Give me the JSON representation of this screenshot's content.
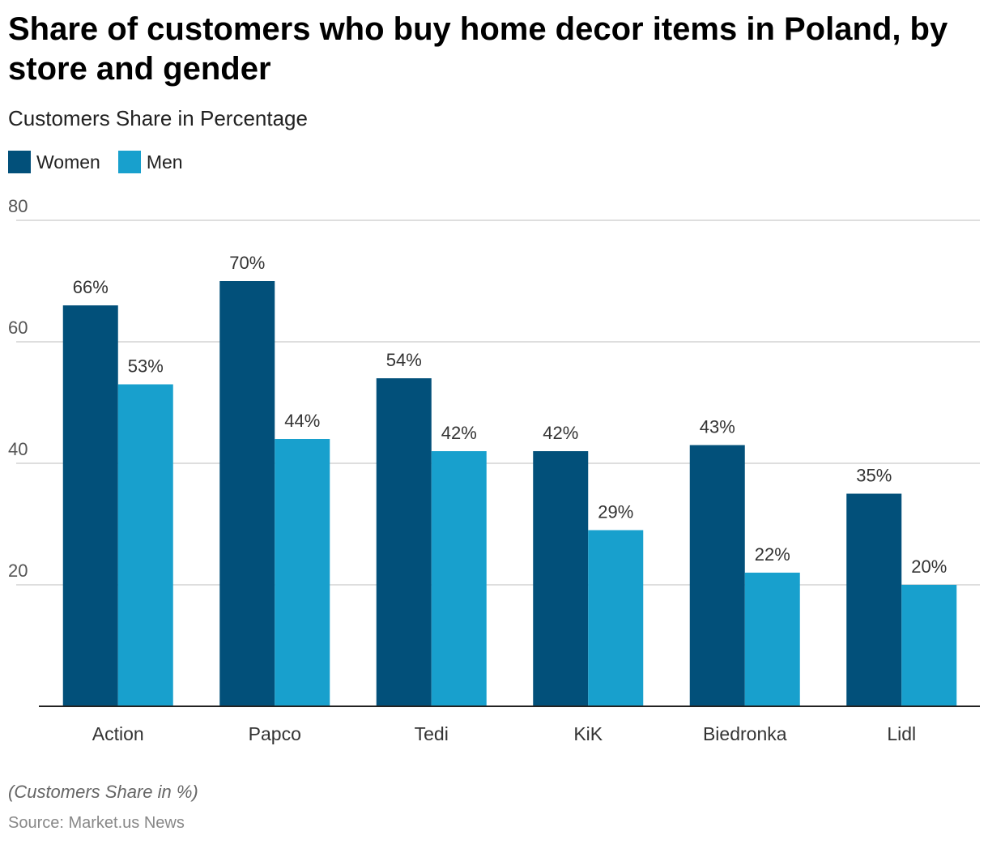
{
  "header": {
    "title": "Share of customers who buy home decor items in Poland, by store and gender",
    "subtitle": "Customers Share in Percentage"
  },
  "legend": {
    "items": [
      {
        "label": "Women",
        "color": "#02507a"
      },
      {
        "label": "Men",
        "color": "#18a0cd"
      }
    ]
  },
  "footer": {
    "note": "(Customers Share in %)",
    "source": "Source: Market.us News"
  },
  "chart_data": {
    "type": "bar",
    "title": "Share of customers who buy home decor items in Poland, by store and gender",
    "subtitle": "Customers Share in Percentage",
    "categories": [
      "Action",
      "Papco",
      "Tedi",
      "KiK",
      "Biedronka",
      "Lidl"
    ],
    "series": [
      {
        "name": "Women",
        "values": [
          66,
          70,
          54,
          42,
          43,
          35
        ],
        "labels": [
          "66%",
          "70%",
          "54%",
          "42%",
          "43%",
          "35%"
        ],
        "color": "#02507a"
      },
      {
        "name": "Men",
        "values": [
          53,
          44,
          42,
          29,
          22,
          20
        ],
        "labels": [
          "53%",
          "44%",
          "42%",
          "29%",
          "22%",
          "20%"
        ],
        "color": "#18a0cd"
      }
    ],
    "ylim": [
      0,
      80
    ],
    "yticks": [
      20,
      40,
      60,
      80
    ],
    "ytick_labels": [
      "20",
      "40",
      "60",
      "80"
    ],
    "grid": true,
    "legend_position": "top-left"
  }
}
